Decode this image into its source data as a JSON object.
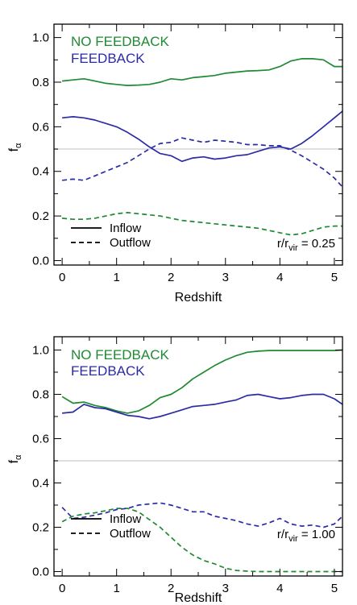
{
  "chart_data": [
    {
      "type": "line",
      "xlabel": "Redshift",
      "ylabel": "f",
      "ylabel_sub": "α",
      "xlim": [
        -0.15,
        5.15
      ],
      "ylim": [
        -0.02,
        1.06
      ],
      "x_ticks": [
        0,
        1,
        2,
        3,
        4,
        5
      ],
      "y_ticks": [
        0.0,
        0.2,
        0.4,
        0.6,
        0.8,
        1.0
      ],
      "x_tick_labels": [
        "0",
        "1",
        "2",
        "3",
        "4",
        "5"
      ],
      "y_tick_labels": [
        "0.0",
        "0.2",
        "0.4",
        "0.6",
        "0.8",
        "1.0"
      ],
      "reference_line": 0.5,
      "labels": {
        "no_feedback": "NO FEEDBACK",
        "feedback": "FEEDBACK"
      },
      "legend": {
        "inflow": "Inflow",
        "outflow": "Outflow"
      },
      "annotation": {
        "prefix": "r/r",
        "sub": "vir",
        "suffix": " = 0.25"
      },
      "series": [
        {
          "name": "NO FEEDBACK",
          "flow": "Inflow",
          "color": "#1e8a32",
          "dash": false,
          "x": [
            0,
            0.2,
            0.4,
            0.6,
            0.8,
            1.0,
            1.2,
            1.4,
            1.6,
            1.8,
            2.0,
            2.2,
            2.4,
            2.6,
            2.8,
            3.0,
            3.2,
            3.4,
            3.6,
            3.8,
            4.0,
            4.2,
            4.4,
            4.6,
            4.8,
            5.0,
            5.15
          ],
          "y": [
            0.805,
            0.81,
            0.815,
            0.805,
            0.795,
            0.79,
            0.785,
            0.787,
            0.79,
            0.8,
            0.815,
            0.81,
            0.82,
            0.825,
            0.83,
            0.84,
            0.845,
            0.85,
            0.852,
            0.855,
            0.87,
            0.895,
            0.905,
            0.905,
            0.9,
            0.87,
            0.87
          ]
        },
        {
          "name": "NO FEEDBACK",
          "flow": "Outflow",
          "color": "#1e8a32",
          "dash": true,
          "x": [
            0,
            0.2,
            0.4,
            0.6,
            0.8,
            1.0,
            1.2,
            1.4,
            1.6,
            1.8,
            2.0,
            2.2,
            2.4,
            2.6,
            2.8,
            3.0,
            3.2,
            3.4,
            3.6,
            3.8,
            4.0,
            4.2,
            4.4,
            4.6,
            4.8,
            5.0,
            5.15
          ],
          "y": [
            0.19,
            0.185,
            0.185,
            0.19,
            0.2,
            0.21,
            0.215,
            0.21,
            0.205,
            0.2,
            0.19,
            0.18,
            0.175,
            0.17,
            0.165,
            0.16,
            0.155,
            0.15,
            0.145,
            0.135,
            0.125,
            0.115,
            0.12,
            0.135,
            0.15,
            0.155,
            0.155
          ]
        },
        {
          "name": "FEEDBACK",
          "flow": "Inflow",
          "color": "#2b2ba6",
          "dash": false,
          "x": [
            0,
            0.2,
            0.4,
            0.6,
            0.8,
            1.0,
            1.2,
            1.4,
            1.6,
            1.8,
            2.0,
            2.2,
            2.4,
            2.6,
            2.8,
            3.0,
            3.2,
            3.4,
            3.6,
            3.8,
            4.0,
            4.2,
            4.4,
            4.6,
            4.8,
            5.0,
            5.15
          ],
          "y": [
            0.64,
            0.645,
            0.64,
            0.63,
            0.615,
            0.6,
            0.575,
            0.545,
            0.51,
            0.48,
            0.47,
            0.445,
            0.46,
            0.465,
            0.455,
            0.46,
            0.47,
            0.475,
            0.49,
            0.505,
            0.51,
            0.5,
            0.525,
            0.56,
            0.6,
            0.64,
            0.67
          ]
        },
        {
          "name": "FEEDBACK",
          "flow": "Outflow",
          "color": "#2b2ba6",
          "dash": true,
          "x": [
            0,
            0.2,
            0.4,
            0.6,
            0.8,
            1.0,
            1.2,
            1.4,
            1.6,
            1.8,
            2.0,
            2.2,
            2.4,
            2.6,
            2.8,
            3.0,
            3.2,
            3.4,
            3.6,
            3.8,
            4.0,
            4.2,
            4.4,
            4.6,
            4.8,
            5.0,
            5.15
          ],
          "y": [
            0.36,
            0.365,
            0.36,
            0.38,
            0.4,
            0.42,
            0.44,
            0.47,
            0.5,
            0.525,
            0.53,
            0.55,
            0.54,
            0.53,
            0.54,
            0.535,
            0.53,
            0.52,
            0.52,
            0.515,
            0.515,
            0.495,
            0.47,
            0.44,
            0.41,
            0.37,
            0.33
          ]
        }
      ]
    },
    {
      "type": "line",
      "xlabel": "Redshift",
      "ylabel": "f",
      "ylabel_sub": "α",
      "xlim": [
        -0.15,
        5.15
      ],
      "ylim": [
        -0.02,
        1.06
      ],
      "x_ticks": [
        0,
        1,
        2,
        3,
        4,
        5
      ],
      "y_ticks": [
        0.0,
        0.2,
        0.4,
        0.6,
        0.8,
        1.0
      ],
      "x_tick_labels": [
        "0",
        "1",
        "2",
        "3",
        "4",
        "5"
      ],
      "y_tick_labels": [
        "0.0",
        "0.2",
        "0.4",
        "0.6",
        "0.8",
        "1.0"
      ],
      "reference_line": 0.5,
      "labels": {
        "no_feedback": "NO FEEDBACK",
        "feedback": "FEEDBACK"
      },
      "legend": {
        "inflow": "Inflow",
        "outflow": "Outflow"
      },
      "annotation": {
        "prefix": "r/r",
        "sub": "vir",
        "suffix": " = 1.00"
      },
      "series": [
        {
          "name": "NO FEEDBACK",
          "flow": "Inflow",
          "color": "#1e8a32",
          "dash": false,
          "x": [
            0,
            0.2,
            0.4,
            0.6,
            0.8,
            1.0,
            1.2,
            1.4,
            1.6,
            1.8,
            2.0,
            2.2,
            2.4,
            2.6,
            2.8,
            3.0,
            3.2,
            3.4,
            3.6,
            3.8,
            4.0,
            4.2,
            4.4,
            4.6,
            4.8,
            5.0,
            5.15
          ],
          "y": [
            0.79,
            0.76,
            0.765,
            0.75,
            0.74,
            0.725,
            0.715,
            0.725,
            0.75,
            0.785,
            0.8,
            0.83,
            0.87,
            0.9,
            0.93,
            0.955,
            0.975,
            0.99,
            0.995,
            0.998,
            0.998,
            0.998,
            0.998,
            0.998,
            0.998,
            0.998,
            1.0
          ]
        },
        {
          "name": "NO FEEDBACK",
          "flow": "Outflow",
          "color": "#1e8a32",
          "dash": true,
          "x": [
            0,
            0.2,
            0.4,
            0.6,
            0.8,
            1.0,
            1.2,
            1.4,
            1.6,
            1.8,
            2.0,
            2.2,
            2.4,
            2.6,
            2.8,
            3.0,
            3.2,
            3.4,
            3.6,
            3.8,
            4.0,
            4.2,
            4.4,
            4.6,
            4.8,
            5.0,
            5.15
          ],
          "y": [
            0.225,
            0.25,
            0.26,
            0.265,
            0.275,
            0.285,
            0.285,
            0.27,
            0.235,
            0.2,
            0.155,
            0.11,
            0.075,
            0.05,
            0.035,
            0.015,
            0.005,
            0.002,
            0.0,
            0.0,
            0.0,
            0.0,
            0.0,
            0.0,
            0.0,
            0.0,
            0.0
          ]
        },
        {
          "name": "FEEDBACK",
          "flow": "Inflow",
          "color": "#2b2ba6",
          "dash": false,
          "x": [
            0,
            0.2,
            0.4,
            0.6,
            0.8,
            1.0,
            1.2,
            1.4,
            1.6,
            1.8,
            2.0,
            2.2,
            2.4,
            2.6,
            2.8,
            3.0,
            3.2,
            3.4,
            3.6,
            3.8,
            4.0,
            4.2,
            4.4,
            4.6,
            4.8,
            5.0,
            5.15
          ],
          "y": [
            0.715,
            0.72,
            0.755,
            0.74,
            0.735,
            0.72,
            0.705,
            0.7,
            0.69,
            0.7,
            0.715,
            0.73,
            0.745,
            0.75,
            0.755,
            0.765,
            0.775,
            0.795,
            0.8,
            0.79,
            0.78,
            0.785,
            0.795,
            0.8,
            0.8,
            0.78,
            0.755
          ]
        },
        {
          "name": "FEEDBACK",
          "flow": "Outflow",
          "color": "#2b2ba6",
          "dash": true,
          "x": [
            0,
            0.2,
            0.4,
            0.6,
            0.8,
            1.0,
            1.2,
            1.4,
            1.6,
            1.8,
            2.0,
            2.2,
            2.4,
            2.6,
            2.8,
            3.0,
            3.2,
            3.4,
            3.6,
            3.8,
            4.0,
            4.2,
            4.4,
            4.6,
            4.8,
            5.0,
            5.15
          ],
          "y": [
            0.29,
            0.24,
            0.245,
            0.255,
            0.265,
            0.28,
            0.285,
            0.3,
            0.305,
            0.31,
            0.3,
            0.285,
            0.27,
            0.27,
            0.25,
            0.24,
            0.23,
            0.215,
            0.205,
            0.22,
            0.24,
            0.215,
            0.205,
            0.21,
            0.2,
            0.215,
            0.25
          ]
        }
      ]
    }
  ]
}
